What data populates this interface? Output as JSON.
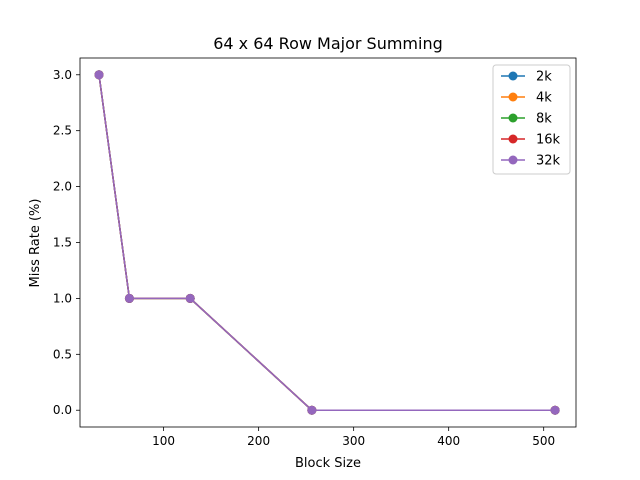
{
  "chart_data": {
    "type": "line",
    "title": "64 x 64 Row Major Summing",
    "xlabel": "Block Size",
    "ylabel": "Miss Rate (%)",
    "xlim": [
      12,
      534
    ],
    "ylim": [
      -0.15,
      3.15
    ],
    "xticks": [
      100,
      200,
      300,
      400,
      500
    ],
    "yticks": [
      0.0,
      0.5,
      1.0,
      1.5,
      2.0,
      2.5,
      3.0
    ],
    "ytick_labels": [
      "0.0",
      "0.5",
      "1.0",
      "1.5",
      "2.0",
      "2.5",
      "3.0"
    ],
    "x": [
      32,
      64,
      128,
      256,
      512
    ],
    "grid": false,
    "legend_position": "top-right",
    "series": [
      {
        "name": "2k",
        "color": "#1f77b4",
        "values": [
          3,
          1,
          1,
          0,
          0
        ]
      },
      {
        "name": "4k",
        "color": "#ff7f0e",
        "values": [
          3,
          1,
          1,
          0,
          0
        ]
      },
      {
        "name": "8k",
        "color": "#2ca02c",
        "values": [
          3,
          1,
          1,
          0,
          0
        ]
      },
      {
        "name": "16k",
        "color": "#d62728",
        "values": [
          3,
          1,
          1,
          0,
          0
        ]
      },
      {
        "name": "32k",
        "color": "#9467bd",
        "values": [
          3,
          1,
          1,
          0,
          0
        ]
      }
    ]
  }
}
